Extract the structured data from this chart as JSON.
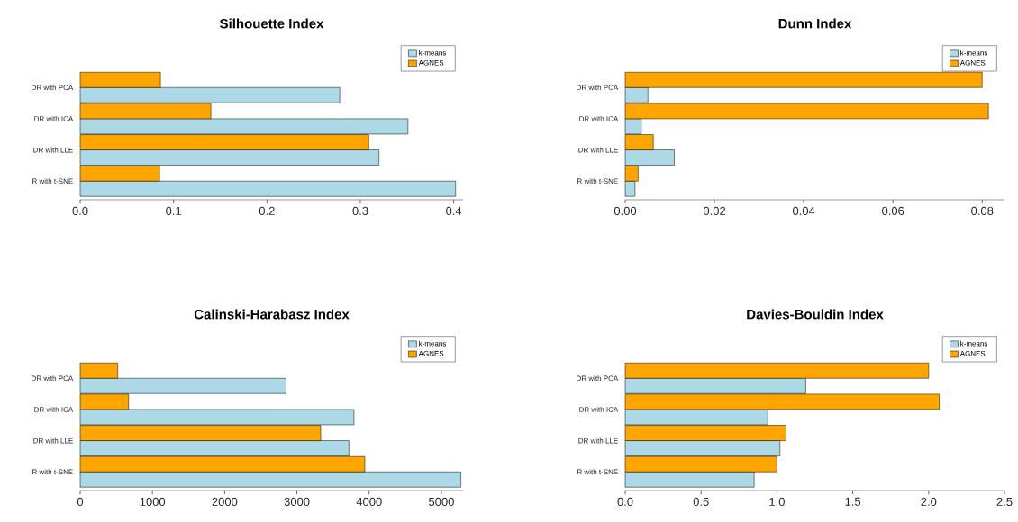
{
  "chart_data": [
    {
      "type": "bar",
      "orientation": "horizontal",
      "title": "Silhouette Index",
      "categories": [
        "DR with PCA",
        "DR with ICA",
        "DR with LLE",
        "R with t-SNE"
      ],
      "series": [
        {
          "name": "k-means",
          "color": "#add8e6",
          "values": [
            0.278,
            0.351,
            0.32,
            0.402
          ]
        },
        {
          "name": "AGNES",
          "color": "#ffa500",
          "values": [
            0.086,
            0.14,
            0.309,
            0.085
          ]
        }
      ],
      "xlim": [
        0,
        0.41
      ],
      "xticks": [
        {
          "value": 0,
          "label": "0.0"
        },
        0.1,
        0.2,
        0.3,
        0.4
      ],
      "legend": "top right"
    },
    {
      "type": "bar",
      "orientation": "horizontal",
      "title": "Dunn Index",
      "categories": [
        "DR with PCA",
        "DR with ICA",
        "DR with LLE",
        "R with t-SNE"
      ],
      "series": [
        {
          "name": "k-means",
          "color": "#add8e6",
          "values": [
            0.0051,
            0.0036,
            0.011,
            0.0022
          ]
        },
        {
          "name": "AGNES",
          "color": "#ffa500",
          "values": [
            0.08,
            0.0814,
            0.0063,
            0.0029
          ]
        }
      ],
      "xlim": [
        0,
        0.085
      ],
      "xticks": [
        {
          "value": 0,
          "label": "0.00"
        },
        0.02,
        0.04,
        0.06,
        0.08
      ],
      "legend": "top right"
    },
    {
      "type": "bar",
      "orientation": "horizontal",
      "title": "Calinski-Harabasz Index",
      "categories": [
        "DR with PCA",
        "DR with ICA",
        "DR with LLE",
        "R with t-SNE"
      ],
      "series": [
        {
          "name": "k-means",
          "color": "#add8e6",
          "values": [
            2850,
            3790,
            3720,
            5270
          ]
        },
        {
          "name": "AGNES",
          "color": "#ffa500",
          "values": [
            520,
            670,
            3330,
            3940
          ]
        }
      ],
      "xlim": [
        0,
        5300
      ],
      "xticks": [
        0,
        1000,
        2000,
        3000,
        4000,
        5000
      ],
      "legend": "top right"
    },
    {
      "type": "bar",
      "orientation": "horizontal",
      "title": "Davies-Bouldin Index",
      "categories": [
        "DR with PCA",
        "DR with ICA",
        "DR with LLE",
        "R with t-SNE"
      ],
      "series": [
        {
          "name": "k-means",
          "color": "#add8e6",
          "values": [
            1.19,
            0.94,
            1.02,
            0.85
          ]
        },
        {
          "name": "AGNES",
          "color": "#ffa500",
          "values": [
            2.0,
            2.07,
            1.06,
            1.0
          ]
        }
      ],
      "xlim": [
        0,
        2.5
      ],
      "xticks": [
        {
          "value": 0,
          "label": "0.0"
        },
        0.5,
        {
          "value": 1,
          "label": "1.0"
        },
        1.5,
        {
          "value": 2,
          "label": "2.0"
        },
        2.5
      ],
      "legend": "top right"
    }
  ]
}
